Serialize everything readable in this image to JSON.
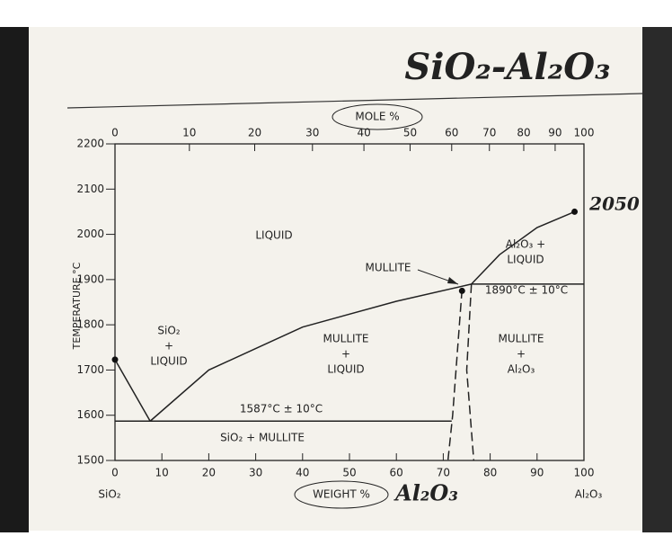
{
  "title": "SiO₂-Al₂O₃",
  "chart_data": {
    "type": "line",
    "x_label": "WEIGHT %",
    "x_label_note": "Al₂O₃",
    "x2_label": "MOLE %",
    "y_label": "TEMPERATURE °C",
    "x_end_labels": [
      "SiO₂",
      "Al₂O₃"
    ],
    "xlim": [
      0,
      100
    ],
    "ylim": [
      1500,
      2200
    ],
    "xticks": [
      0,
      10,
      20,
      30,
      40,
      50,
      60,
      70,
      80,
      90,
      100
    ],
    "x2ticks": [
      0,
      10,
      20,
      30,
      40,
      50,
      60,
      70,
      80,
      90,
      100
    ],
    "yticks": [
      1500,
      1600,
      1700,
      1800,
      1900,
      2000,
      2100,
      2200
    ],
    "series": [
      {
        "color": "#222222",
        "dashed": false,
        "x": [
          0,
          7.5
        ],
        "values": [
          1723,
          1587
        ]
      },
      {
        "color": "#222222",
        "dashed": false,
        "x": [
          7.5,
          20,
          40,
          60,
          76
        ],
        "values": [
          1587,
          1700,
          1795,
          1852,
          1890
        ]
      },
      {
        "color": "#222222",
        "dashed": false,
        "x": [
          76,
          82,
          90,
          98
        ],
        "values": [
          1890,
          1955,
          2015,
          2050
        ]
      },
      {
        "color": "#222222",
        "dashed": false,
        "x": [
          0,
          71.8
        ],
        "values": [
          1587,
          1587
        ]
      },
      {
        "color": "#222222",
        "dashed": false,
        "x": [
          76,
          100
        ],
        "values": [
          1890,
          1890
        ]
      },
      {
        "color": "#222222",
        "dashed": true,
        "x": [
          74,
          72,
          71
        ],
        "values": [
          1878,
          1600,
          1500
        ]
      },
      {
        "color": "#222222",
        "dashed": true,
        "x": [
          76,
          75,
          76.5
        ],
        "values": [
          1890,
          1700,
          1500
        ]
      }
    ],
    "points": {
      "x": [
        0,
        74,
        98
      ],
      "values": [
        1723,
        1875,
        2050
      ]
    },
    "region_labels": [
      [
        "LIQUID"
      ],
      [
        "SiO₂",
        "+",
        "LIQUID"
      ],
      [
        "MULLITE",
        "+",
        "LIQUID"
      ],
      [
        "Al₂O₃ +",
        "LIQUID"
      ],
      [
        "MULLITE",
        "+",
        "Al₂O₃"
      ],
      [
        "SiO₂ + MULLITE"
      ]
    ],
    "annotations": [
      "MULLITE",
      "1890°C ± 10°C",
      "1587°C ± 10°C",
      "2050"
    ]
  }
}
